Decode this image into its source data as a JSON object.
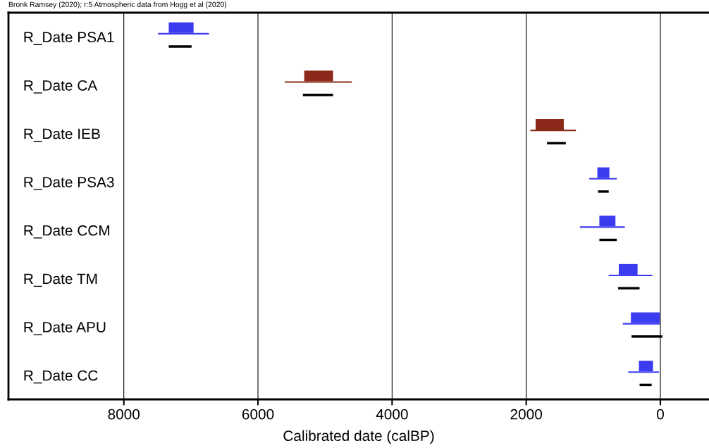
{
  "chart_data": {
    "type": "bar",
    "orientation": "horizontal",
    "title": "Bronk Ramsey (2020); r:5 Atmospheric data from Hogg et al (2020)",
    "xlabel": "Calibrated date (calBP)",
    "categories": [
      "R_Date PSA1",
      "R_Date CA",
      "R_Date IEB",
      "R_Date PSA3",
      "R_Date CCM",
      "R_Date TM",
      "R_Date APU",
      "R_Date CC"
    ],
    "series": [
      {
        "colors": [
          "#3b3bf0",
          "#8b2a1a",
          "#8b2a1a",
          "#3b3bf0",
          "#3b3bf0",
          "#3b3bf0",
          "#3b3bf0",
          "#3b3bf0"
        ],
        "base": [
          6960,
          4880,
          1440,
          760,
          670,
          340,
          10,
          110
        ],
        "values": [
          370,
          430,
          420,
          180,
          240,
          280,
          430,
          210
        ]
      },
      {
        "colors": [
          "#3b3bf0",
          "#8b2a1a",
          "#8b2a1a",
          "#3b3bf0",
          "#3b3bf0",
          "#3b3bf0",
          "#3b3bf0",
          "#3b3bf0"
        ],
        "base": [
          6730,
          4600,
          1260,
          650,
          530,
          120,
          10,
          20
        ],
        "values": [
          760,
          1000,
          680,
          410,
          670,
          650,
          550,
          460
        ]
      },
      {
        "color": "#000000",
        "base": [
          6990,
          4880,
          1410,
          770,
          650,
          310,
          -30,
          130
        ],
        "values": [
          340,
          450,
          280,
          160,
          260,
          320,
          460,
          180
        ]
      }
    ],
    "xlim": [
      9720,
      -725
    ],
    "xticks": [
      8000,
      6000,
      4000,
      2000,
      0
    ],
    "grid": "x",
    "legend": false
  }
}
